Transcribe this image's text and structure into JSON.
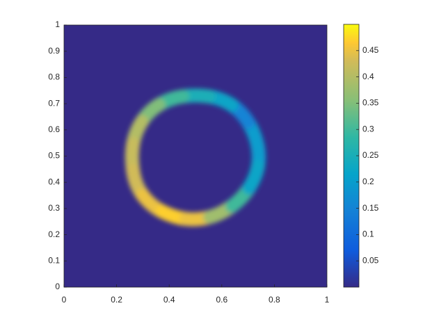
{
  "chart_data": {
    "type": "heatmap",
    "background": 0,
    "x": [
      0.745,
      0.725,
      0.675,
      0.6,
      0.5,
      0.4,
      0.32,
      0.27,
      0.255,
      0.27,
      0.33,
      0.42,
      0.51,
      0.6,
      0.68,
      0.73
    ],
    "y": [
      0.5,
      0.59,
      0.67,
      0.72,
      0.735,
      0.72,
      0.67,
      0.59,
      0.5,
      0.39,
      0.31,
      0.265,
      0.255,
      0.28,
      0.34,
      0.42
    ],
    "values": [
      0.2,
      0.2,
      0.15,
      0.22,
      0.25,
      0.3,
      0.35,
      0.4,
      0.42,
      0.43,
      0.45,
      0.47,
      0.45,
      0.38,
      0.3,
      0.22
    ],
    "xlim": [
      0,
      1
    ],
    "xticks": [
      0,
      0.2,
      0.4,
      0.6,
      0.8,
      1
    ],
    "ylim": [
      0,
      1
    ],
    "yticks": [
      0,
      0.1,
      0.2,
      0.3,
      0.4,
      0.5,
      0.6,
      0.7,
      0.8,
      0.9,
      1
    ],
    "clim": [
      0,
      0.5
    ],
    "cticks": [
      0.05,
      0.1,
      0.15,
      0.2,
      0.25,
      0.3,
      0.35,
      0.4,
      0.45
    ]
  }
}
